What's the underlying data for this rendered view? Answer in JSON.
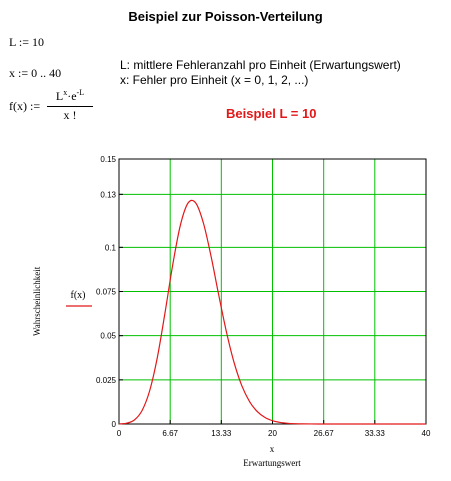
{
  "page": {
    "title": "Beispiel zur Poisson-Verteilung",
    "assign_L": "L := 10",
    "assign_x": "x := 0 .. 40",
    "fx_lhs": "f(x) :=",
    "fx_num_base": "L",
    "fx_num_exp": "x",
    "fx_num_mid": "·e",
    "fx_num_exp2": "-L",
    "fx_den": "x !",
    "desc_L": "L: mittlere Fehleranzahl pro Einheit (Erwartungswert)",
    "desc_x": "x: Fehler pro Einheit (x = 0, 1, 2, ...)",
    "example_label": "Beispiel L = 10"
  },
  "colors": {
    "curve": "#e21818",
    "grid": "#00c000",
    "axis": "#000000",
    "example_text": "#e21818"
  },
  "chart_data": {
    "type": "line",
    "title": "",
    "xlabel": "x",
    "xlabel2": "Erwartungswert",
    "ylabel": "Wahrscheinlichkeit",
    "legend_label": "f(x)",
    "xlim": [
      0,
      40
    ],
    "ylim": [
      0,
      0.15
    ],
    "grid": true,
    "x_ticks": [
      "0",
      "6.67",
      "13.33",
      "20",
      "26.67",
      "33.33",
      "40"
    ],
    "y_ticks": [
      "0",
      "0.025",
      "0.05",
      "0.075",
      "0.1",
      "0.13",
      "0.15"
    ],
    "series": [
      {
        "name": "f(x)",
        "x": [
          0,
          1,
          2,
          3,
          4,
          5,
          6,
          7,
          8,
          9,
          10,
          11,
          12,
          13,
          14,
          15,
          16,
          17,
          18,
          19,
          20,
          21,
          22,
          23,
          24,
          25,
          26,
          27,
          28,
          29,
          30,
          31,
          32,
          33,
          34,
          35,
          36,
          37,
          38,
          39,
          40
        ],
        "values": [
          4.54e-05,
          0.000454,
          0.00227,
          0.00757,
          0.0189,
          0.0378,
          0.0631,
          0.0901,
          0.1126,
          0.1251,
          0.1251,
          0.1137,
          0.0948,
          0.0729,
          0.0521,
          0.0347,
          0.0217,
          0.0128,
          0.00709,
          0.00373,
          0.00187,
          0.00089,
          0.000404,
          0.000176,
          7.32e-05,
          2.93e-05,
          1.13e-05,
          4.2e-06,
          1.5e-06,
          5e-07,
          2e-07,
          0,
          0,
          0,
          0,
          0,
          0,
          0,
          0,
          0,
          0
        ]
      }
    ]
  }
}
